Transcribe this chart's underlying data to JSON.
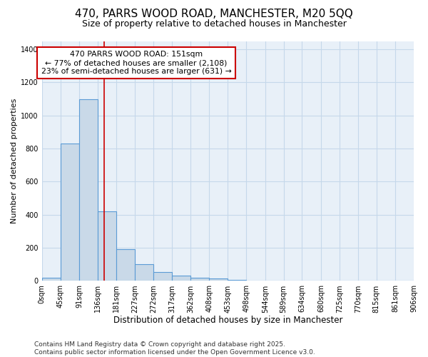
{
  "title_line1": "470, PARRS WOOD ROAD, MANCHESTER, M20 5QQ",
  "title_line2": "Size of property relative to detached houses in Manchester",
  "xlabel": "Distribution of detached houses by size in Manchester",
  "ylabel": "Number of detached properties",
  "bin_edges": [
    0,
    45,
    91,
    136,
    181,
    227,
    272,
    317,
    362,
    408,
    453,
    498,
    544,
    589,
    634,
    680,
    725,
    770,
    815,
    861,
    906
  ],
  "bar_heights": [
    20,
    830,
    1100,
    420,
    190,
    100,
    55,
    32,
    20,
    13,
    8,
    2,
    1,
    1,
    0,
    0,
    0,
    0,
    0,
    0
  ],
  "bar_color": "#c9d9e8",
  "bar_edgecolor": "#5b9bd5",
  "bar_linewidth": 0.8,
  "red_line_x": 151,
  "red_line_color": "#cc0000",
  "annotation_text": "470 PARRS WOOD ROAD: 151sqm\n← 77% of detached houses are smaller (2,108)\n23% of semi-detached houses are larger (631) →",
  "annotation_boxcolor": "white",
  "annotation_edgecolor": "#cc0000",
  "annotation_fontsize": 7.8,
  "ylim": [
    0,
    1450
  ],
  "yticks": [
    0,
    200,
    400,
    600,
    800,
    1000,
    1200,
    1400
  ],
  "grid_color": "#c5d8ea",
  "bg_color": "#e8f0f8",
  "footnote": "Contains HM Land Registry data © Crown copyright and database right 2025.\nContains public sector information licensed under the Open Government Licence v3.0.",
  "title_fontsize": 11,
  "subtitle_fontsize": 9,
  "xlabel_fontsize": 8.5,
  "ylabel_fontsize": 8,
  "tick_fontsize": 7,
  "footnote_fontsize": 6.5
}
